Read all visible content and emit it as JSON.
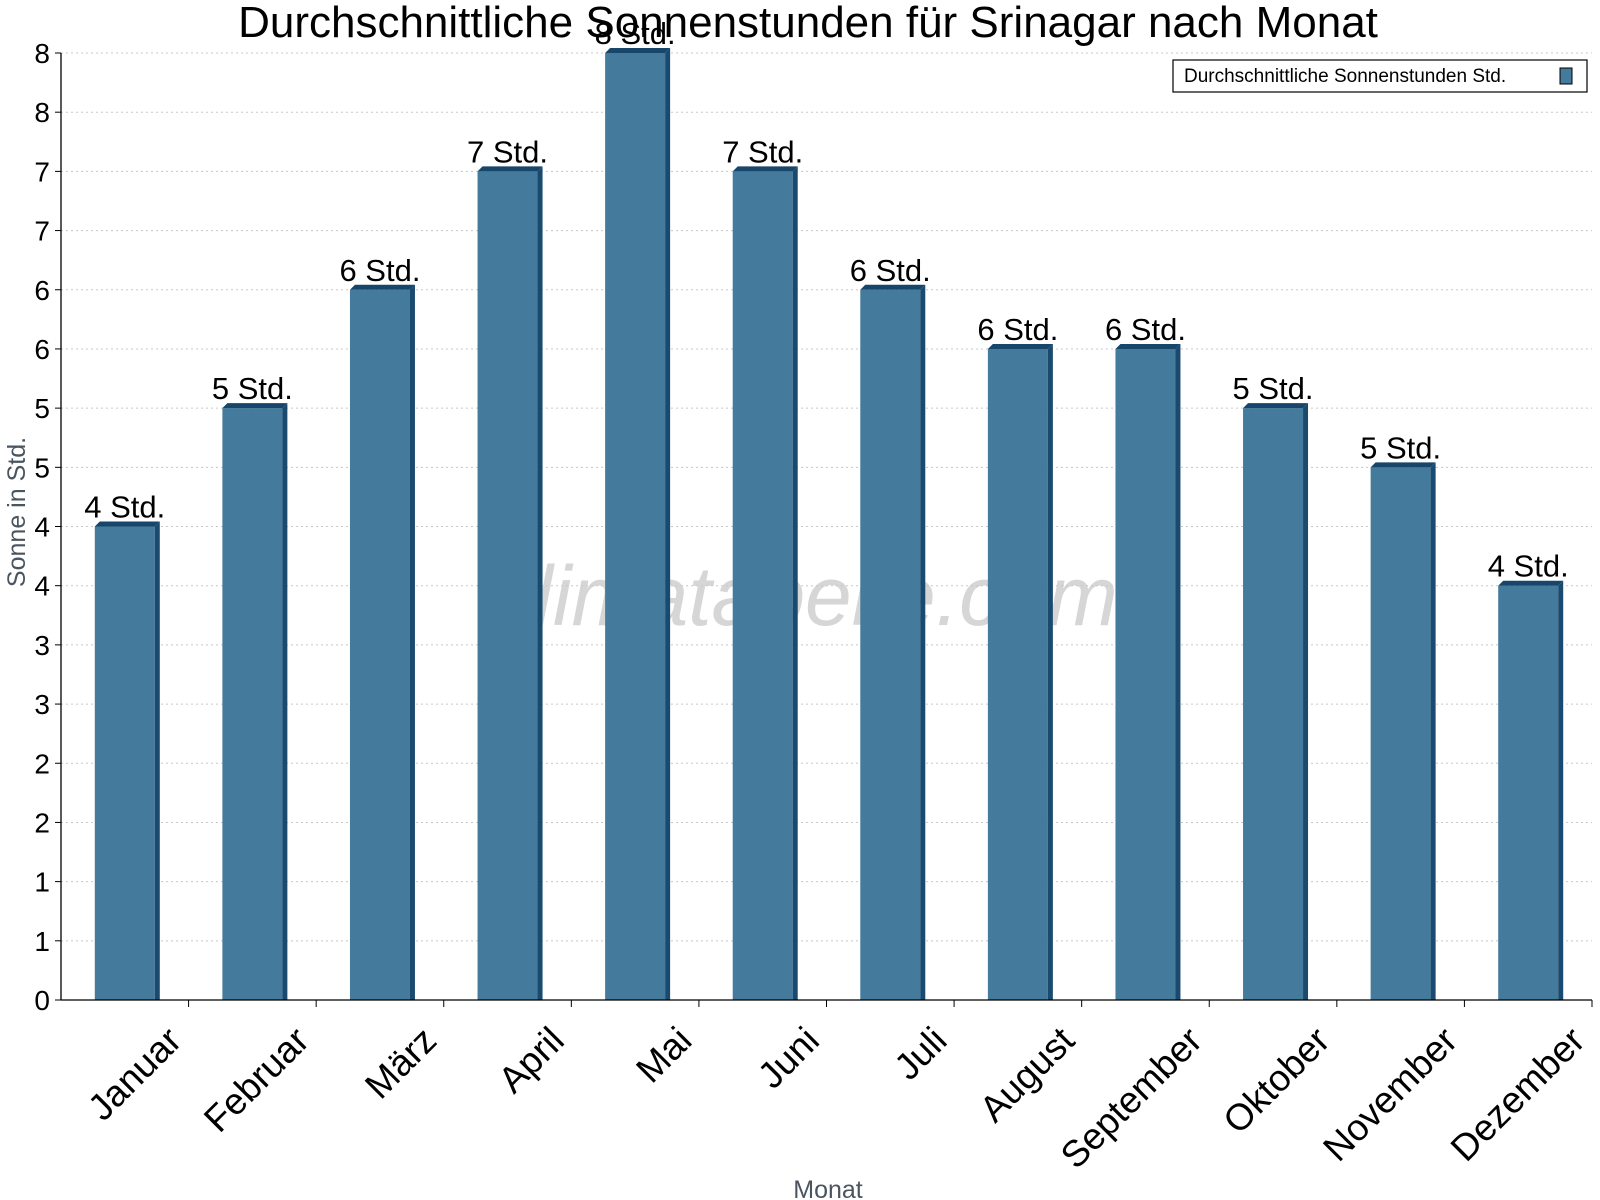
{
  "chart_data": {
    "type": "bar",
    "title": "Durchschnittliche Sonnenstunden für Srinagar nach Monat",
    "xlabel": "Monat",
    "ylabel": "Sonne in Std.",
    "categories": [
      "Januar",
      "Februar",
      "März",
      "April",
      "Mai",
      "Juni",
      "Juli",
      "August",
      "September",
      "Oktober",
      "November",
      "Dezember"
    ],
    "series": [
      {
        "name": "Durchschnittliche Sonnenstunden Std.",
        "values": [
          4.0,
          5.0,
          6.0,
          7.0,
          8.0,
          7.0,
          6.0,
          5.5,
          5.5,
          5.0,
          4.5,
          3.5
        ],
        "data_labels": [
          "4 Std.",
          "5 Std.",
          "6 Std.",
          "7 Std.",
          "8 Std.",
          "7 Std.",
          "6 Std.",
          "6 Std.",
          "6 Std.",
          "5 Std.",
          "5 Std.",
          "4 Std."
        ]
      }
    ],
    "ylim": [
      0,
      8
    ],
    "yticks": [
      0,
      0.5,
      1,
      1.5,
      2,
      2.5,
      3,
      3.5,
      4,
      4.5,
      5,
      5.5,
      6,
      6.5,
      7,
      7.5,
      8
    ],
    "ytick_labels": [
      "0",
      "1",
      "1",
      "2",
      "2",
      "3",
      "3",
      "4",
      "4",
      "5",
      "5",
      "6",
      "6",
      "7",
      "7",
      "8",
      "8"
    ],
    "grid": "horizontal-dotted",
    "legend_position": "top-right",
    "watermark": "klimatabelle.com",
    "colors": {
      "bar": "#447a9c",
      "bar_side": "#1a4a6e",
      "bar_top": "#17466a",
      "grid": "#c8c8c8",
      "axis": "#000000"
    }
  }
}
